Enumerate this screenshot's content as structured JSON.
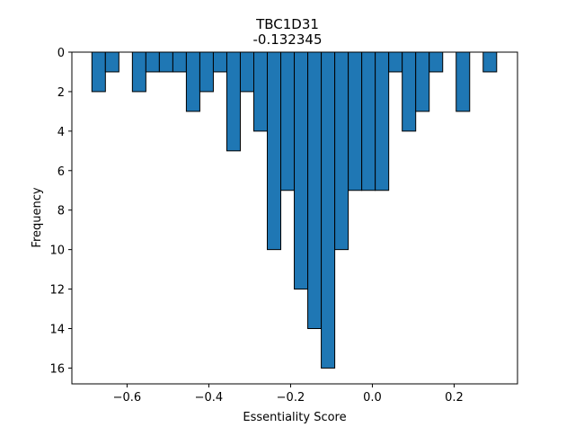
{
  "chart_data": {
    "type": "bar",
    "title": "TBC1D31",
    "subtitle": "-0.132345",
    "xlabel": "Essentiality Score",
    "ylabel": "Frequency",
    "bar_color": "#1f77b4",
    "edge_color": "#000000",
    "y_inverted": true,
    "xlim": [
      -0.735,
      0.355
    ],
    "ylim": [
      0,
      16.8
    ],
    "bin_width": 0.033,
    "x_ticks": [
      -0.6,
      -0.4,
      -0.2,
      0.0,
      0.2
    ],
    "x_tick_labels": [
      "−0.6",
      "−0.4",
      "−0.2",
      "0.0",
      "0.2"
    ],
    "y_ticks": [
      0,
      2,
      4,
      6,
      8,
      10,
      12,
      14,
      16
    ],
    "y_tick_labels": [
      "0",
      "2",
      "4",
      "6",
      "8",
      "10",
      "12",
      "14",
      "16"
    ],
    "bins": [
      {
        "x0": -0.686,
        "count": 2
      },
      {
        "x0": -0.653,
        "count": 1
      },
      {
        "x0": -0.587,
        "count": 2
      },
      {
        "x0": -0.554,
        "count": 1
      },
      {
        "x0": -0.521,
        "count": 1
      },
      {
        "x0": -0.488,
        "count": 1
      },
      {
        "x0": -0.455,
        "count": 3
      },
      {
        "x0": -0.422,
        "count": 2
      },
      {
        "x0": -0.389,
        "count": 1
      },
      {
        "x0": -0.356,
        "count": 5
      },
      {
        "x0": -0.323,
        "count": 2
      },
      {
        "x0": -0.29,
        "count": 4
      },
      {
        "x0": -0.257,
        "count": 10
      },
      {
        "x0": -0.224,
        "count": 7
      },
      {
        "x0": -0.191,
        "count": 12
      },
      {
        "x0": -0.158,
        "count": 14
      },
      {
        "x0": -0.125,
        "count": 16
      },
      {
        "x0": -0.092,
        "count": 10
      },
      {
        "x0": -0.059,
        "count": 7
      },
      {
        "x0": -0.026,
        "count": 7
      },
      {
        "x0": 0.007,
        "count": 7
      },
      {
        "x0": 0.04,
        "count": 1
      },
      {
        "x0": 0.073,
        "count": 4
      },
      {
        "x0": 0.106,
        "count": 3
      },
      {
        "x0": 0.139,
        "count": 1
      },
      {
        "x0": 0.205,
        "count": 3
      },
      {
        "x0": 0.271,
        "count": 1
      }
    ]
  }
}
